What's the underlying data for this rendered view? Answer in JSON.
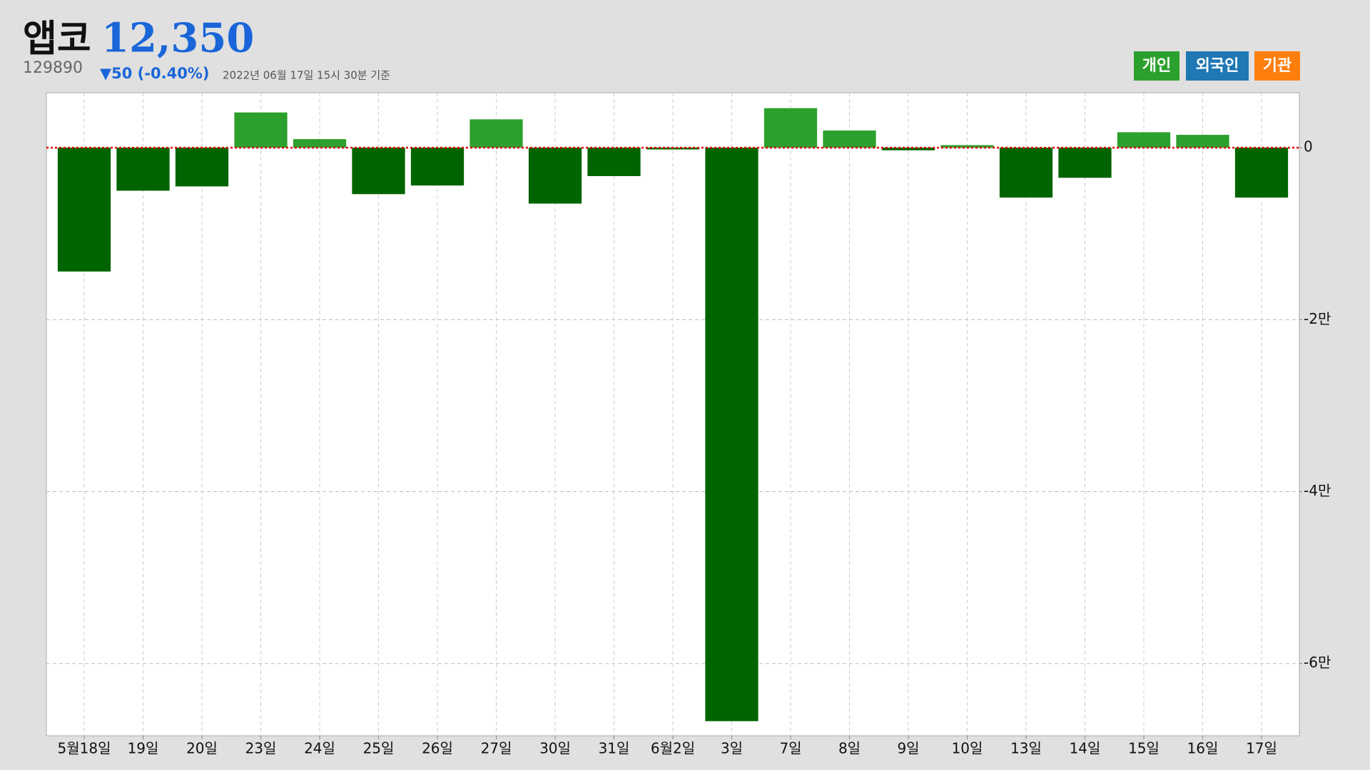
{
  "header": {
    "name": "앱코",
    "price": "12,350",
    "code": "129890",
    "change": "▼50 (-0.40%)",
    "date": "2022년 06월 17일 15시 30분 기준"
  },
  "legend": [
    {
      "label": "개인",
      "color": "#2ca02c"
    },
    {
      "label": "외국인",
      "color": "#1f77b4"
    },
    {
      "label": "기관",
      "color": "#ff7f0e"
    }
  ],
  "chart_data": {
    "type": "bar",
    "categories": [
      "5월18일",
      "19일",
      "20일",
      "23일",
      "24일",
      "25일",
      "26일",
      "27일",
      "30일",
      "31일",
      "6월2일",
      "3일",
      "7일",
      "8일",
      "9일",
      "10일",
      "13일",
      "14일",
      "15일",
      "16일",
      "17일"
    ],
    "values": [
      -14400,
      -5000,
      -4500,
      4100,
      1000,
      -5400,
      -4400,
      3300,
      -6500,
      -3300,
      -200,
      -66700,
      4600,
      2000,
      -300,
      300,
      -5800,
      -3500,
      1800,
      1500,
      -5800
    ],
    "positive_color": "#2ca02c",
    "negative_color": "#006400",
    "zero_line_color": "#e00000",
    "ylim": [
      -68400,
      6400
    ],
    "yticks": [
      0,
      {
        "value": -20000,
        "label": "-2만"
      },
      {
        "value": -40000,
        "label": "-4만"
      },
      {
        "value": -60000,
        "label": "-6만"
      }
    ],
    "grid": true
  }
}
